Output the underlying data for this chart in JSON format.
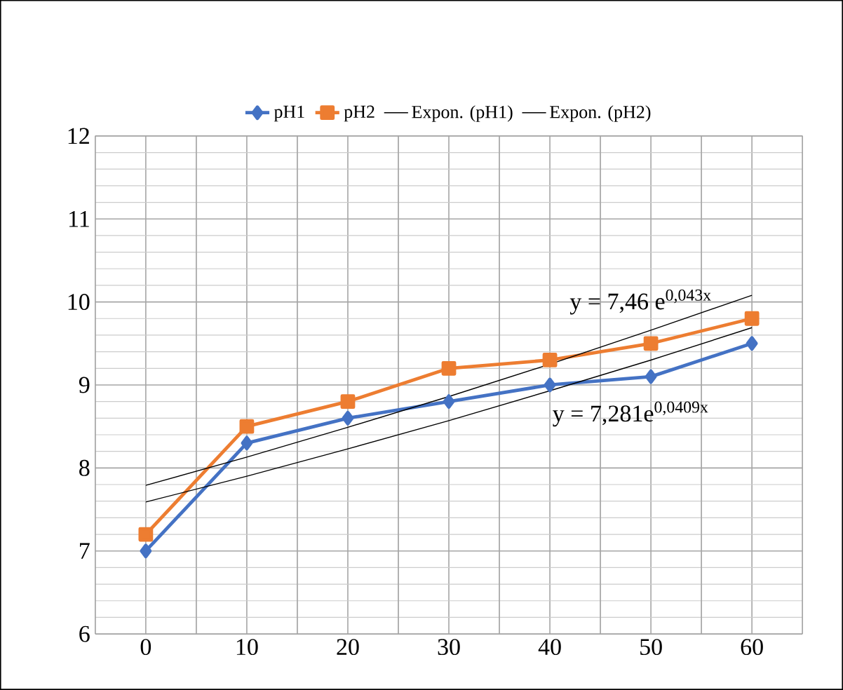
{
  "chart_data": {
    "type": "line",
    "categories": [
      "0",
      "10",
      "20",
      "30",
      "40",
      "50",
      "60"
    ],
    "series": [
      {
        "name": "pH1",
        "color": "#4472c4",
        "marker": "diamond",
        "values": [
          7.0,
          8.3,
          8.6,
          8.8,
          9.0,
          9.1,
          9.5
        ]
      },
      {
        "name": "pH2",
        "color": "#ed7d31",
        "marker": "square",
        "values": [
          7.2,
          8.5,
          8.8,
          9.2,
          9.3,
          9.5,
          9.8
        ]
      },
      {
        "name": "Expon. (pH1)",
        "color": "#000000",
        "marker": "none",
        "values": [
          7.59,
          7.9,
          8.23,
          8.57,
          8.93,
          9.3,
          9.69
        ]
      },
      {
        "name": "Expon. (pH2)",
        "color": "#000000",
        "marker": "none",
        "values": [
          7.79,
          8.13,
          8.49,
          8.86,
          9.25,
          9.66,
          10.08
        ]
      }
    ],
    "ylim": [
      6,
      12
    ],
    "yticks": [
      6,
      7,
      8,
      9,
      10,
      11,
      12
    ],
    "grid": true,
    "legend": "top",
    "annotations": [
      "y = 7,46 e$^{0,043x}$",
      "y = 7,281e$^{0,0409x}$"
    ]
  }
}
